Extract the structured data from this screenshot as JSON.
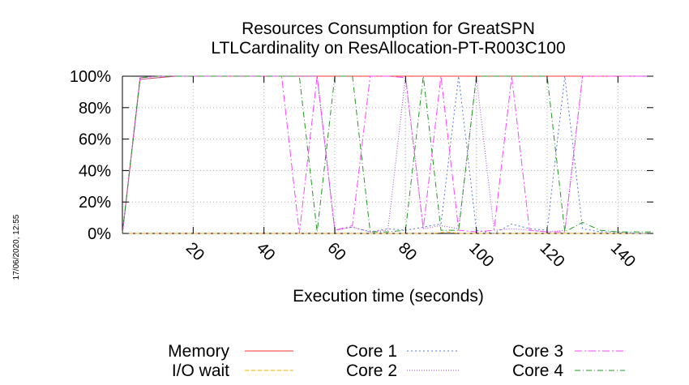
{
  "chart_data": {
    "type": "line",
    "title": "Resources Consumption for GreatSPN",
    "subtitle": "LTLCardinality on ResAllocation-PT-R003C100",
    "xlabel": "Execution time (seconds)",
    "ylabel": "",
    "xlim": [
      0,
      150
    ],
    "ylim": [
      0,
      100
    ],
    "xticks": [
      20,
      40,
      60,
      80,
      100,
      120,
      140
    ],
    "xtick_labels": [
      "20",
      "40",
      "60",
      "80",
      "100",
      "120",
      "140"
    ],
    "yticks": [
      0,
      20,
      40,
      60,
      80,
      100
    ],
    "ytick_labels": [
      "0%",
      "20%",
      "40%",
      "60%",
      "80%",
      "100%"
    ],
    "grid": true,
    "legend_placement": "bottom",
    "timestamp": "17/06/2020, 12:55",
    "series": [
      {
        "name": "Memory",
        "color": "#ff3333",
        "dash": "",
        "points": [
          [
            0,
            0
          ],
          [
            5,
            98
          ],
          [
            10,
            99
          ],
          [
            15,
            100
          ],
          [
            150,
            100
          ]
        ]
      },
      {
        "name": "I/O wait",
        "color": "#ffaa00",
        "dash": "5,3",
        "points": [
          [
            0,
            0
          ],
          [
            5,
            0
          ],
          [
            85,
            0
          ],
          [
            88,
            0
          ],
          [
            92,
            1
          ],
          [
            95,
            0
          ],
          [
            150,
            0
          ]
        ]
      },
      {
        "name": "Core 1",
        "color": "#5577dd",
        "dash": "2,3",
        "points": [
          [
            0,
            0
          ],
          [
            5,
            98
          ],
          [
            10,
            99
          ],
          [
            15,
            100
          ],
          [
            45,
            100
          ],
          [
            50,
            100
          ],
          [
            55,
            100
          ],
          [
            60,
            2
          ],
          [
            65,
            4
          ],
          [
            70,
            1
          ],
          [
            75,
            3
          ],
          [
            80,
            2
          ],
          [
            85,
            4
          ],
          [
            90,
            6
          ],
          [
            95,
            100
          ],
          [
            100,
            2
          ],
          [
            105,
            0
          ],
          [
            110,
            6
          ],
          [
            115,
            3
          ],
          [
            120,
            2
          ],
          [
            125,
            100
          ],
          [
            130,
            3
          ],
          [
            135,
            1
          ],
          [
            140,
            1
          ],
          [
            145,
            0
          ],
          [
            150,
            0
          ]
        ]
      },
      {
        "name": "Core 2",
        "color": "#aa44dd",
        "dash": "1,2",
        "points": [
          [
            0,
            0
          ],
          [
            5,
            99
          ],
          [
            10,
            100
          ],
          [
            15,
            100
          ],
          [
            45,
            100
          ],
          [
            50,
            100
          ],
          [
            55,
            100
          ],
          [
            60,
            2
          ],
          [
            65,
            4
          ],
          [
            70,
            1
          ],
          [
            75,
            2
          ],
          [
            80,
            100
          ],
          [
            85,
            3
          ],
          [
            90,
            5
          ],
          [
            95,
            3
          ],
          [
            100,
            100
          ],
          [
            105,
            2
          ],
          [
            110,
            3
          ],
          [
            115,
            2
          ],
          [
            120,
            1
          ],
          [
            125,
            2
          ],
          [
            130,
            100
          ],
          [
            135,
            100
          ],
          [
            140,
            100
          ],
          [
            145,
            100
          ],
          [
            150,
            100
          ]
        ]
      },
      {
        "name": "Core 3",
        "color": "#ff44ff",
        "dash": "9,3,2,3",
        "points": [
          [
            0,
            0
          ],
          [
            5,
            99
          ],
          [
            10,
            100
          ],
          [
            15,
            100
          ],
          [
            45,
            100
          ],
          [
            50,
            0
          ],
          [
            55,
            100
          ],
          [
            60,
            2
          ],
          [
            65,
            5
          ],
          [
            70,
            100
          ],
          [
            75,
            100
          ],
          [
            80,
            99
          ],
          [
            85,
            3
          ],
          [
            90,
            100
          ],
          [
            95,
            2
          ],
          [
            100,
            1
          ],
          [
            105,
            2
          ],
          [
            110,
            100
          ],
          [
            115,
            2
          ],
          [
            120,
            1
          ],
          [
            125,
            1
          ],
          [
            130,
            100
          ],
          [
            135,
            100
          ],
          [
            140,
            100
          ],
          [
            145,
            100
          ],
          [
            150,
            100
          ]
        ]
      },
      {
        "name": "Core 4",
        "color": "#229922",
        "dash": "7,3,1,3",
        "points": [
          [
            0,
            0
          ],
          [
            5,
            99
          ],
          [
            10,
            100
          ],
          [
            15,
            100
          ],
          [
            45,
            100
          ],
          [
            50,
            100
          ],
          [
            55,
            1
          ],
          [
            60,
            100
          ],
          [
            65,
            100
          ],
          [
            70,
            1
          ],
          [
            75,
            1
          ],
          [
            80,
            2
          ],
          [
            85,
            100
          ],
          [
            90,
            2
          ],
          [
            95,
            2
          ],
          [
            100,
            100
          ],
          [
            105,
            100
          ],
          [
            110,
            100
          ],
          [
            115,
            100
          ],
          [
            120,
            100
          ],
          [
            125,
            1
          ],
          [
            130,
            7
          ],
          [
            135,
            2
          ],
          [
            140,
            1
          ],
          [
            145,
            1
          ],
          [
            150,
            1
          ]
        ]
      }
    ]
  }
}
